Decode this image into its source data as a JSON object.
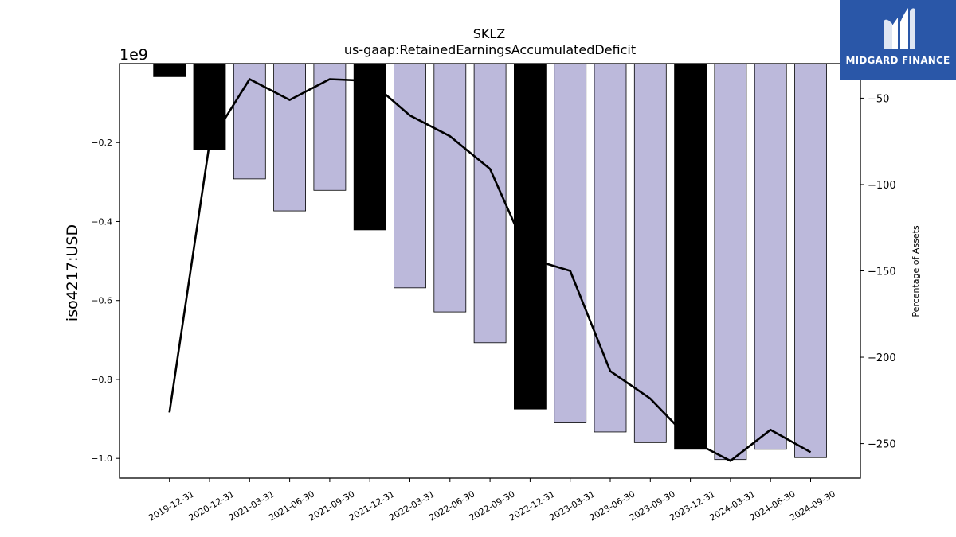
{
  "chart_data": {
    "type": "bar",
    "title": "SKLZ",
    "subtitle": "us-gaap:RetainedEarningsAccumulatedDeficit",
    "ylabel": "iso4217:USD",
    "y_offset_label": "1e9",
    "y2label": "Percentage of Assets",
    "categories": [
      "2019-12-31",
      "2020-12-31",
      "2021-03-31",
      "2021-06-30",
      "2021-09-30",
      "2021-12-31",
      "2022-03-31",
      "2022-06-30",
      "2022-09-30",
      "2022-12-31",
      "2023-03-31",
      "2023-06-30",
      "2023-09-30",
      "2023-12-31",
      "2024-03-31",
      "2024-06-30",
      "2024-09-30"
    ],
    "series": [
      {
        "axis": "left",
        "type": "bar",
        "values": [
          -0.033,
          -0.217,
          -0.292,
          -0.373,
          -0.321,
          -0.421,
          -0.568,
          -0.629,
          -0.707,
          -0.875,
          -0.91,
          -0.933,
          -0.96,
          -0.977,
          -1.003,
          -0.977,
          -0.998
        ],
        "bar_colors": [
          "#000000",
          "#000000",
          "#bcb9db",
          "#bcb9db",
          "#bcb9db",
          "#000000",
          "#bcb9db",
          "#bcb9db",
          "#bcb9db",
          "#000000",
          "#bcb9db",
          "#bcb9db",
          "#bcb9db",
          "#000000",
          "#bcb9db",
          "#bcb9db",
          "#bcb9db"
        ]
      },
      {
        "axis": "right",
        "type": "line",
        "color": "#000000",
        "values": [
          -232,
          -76,
          -39,
          -51,
          -39,
          -40,
          -60,
          -72,
          -91,
          -143,
          -150,
          -208,
          -224,
          -248,
          -260,
          -242,
          -255
        ]
      }
    ],
    "ylim": [
      -1.05,
      -0.0
    ],
    "y2lim": [
      -270,
      -30
    ],
    "yticks": [
      -1.0,
      -0.8,
      -0.6,
      -0.4,
      -0.2
    ],
    "ytick_labels": [
      "−1.0",
      "−0.8",
      "−0.6",
      "−0.4",
      "−0.2"
    ],
    "y2ticks": [
      -250,
      -200,
      -150,
      -100,
      -50
    ],
    "y2tick_labels": [
      "−250",
      "−200",
      "−150",
      "−100",
      "−50"
    ],
    "grid": false
  },
  "brand": {
    "name": "MIDGARD FINANCE",
    "background": "#2a57a8",
    "logo_icon": "midgard-m-logo"
  }
}
